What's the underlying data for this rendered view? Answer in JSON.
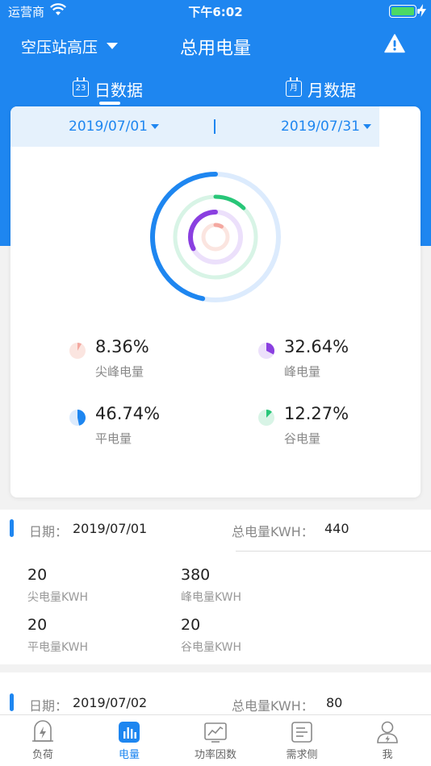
{
  "status_bar": {
    "carrier": "运营商",
    "time": "下午6:02"
  },
  "header": {
    "station": "空压站高压",
    "title": "总用电量"
  },
  "tabs": [
    {
      "label": "日数据",
      "icon_text": "23"
    },
    {
      "label": "月数据",
      "icon_text": "月"
    }
  ],
  "date_range": {
    "start": "2019/07/01",
    "end": "2019/07/31"
  },
  "chart_data": {
    "type": "pie",
    "categories": [
      "尖峰电量",
      "峰电量",
      "平电量",
      "谷电量"
    ],
    "values": [
      8.36,
      32.64,
      46.74,
      12.27
    ],
    "colors": [
      "#f4a8a0",
      "#8a3fe0",
      "#1e86f0",
      "#28c678"
    ],
    "track_colors": [
      "#fbe5e0",
      "#ece0fb",
      "#dcebfd",
      "#d8f4e6"
    ]
  },
  "stats": [
    {
      "pct": "8.36%",
      "label": "尖峰电量"
    },
    {
      "pct": "32.64%",
      "label": "峰电量"
    },
    {
      "pct": "46.74%",
      "label": "平电量"
    },
    {
      "pct": "12.27%",
      "label": "谷电量"
    }
  ],
  "records": [
    {
      "date_label": "日期：",
      "date": "2019/07/01",
      "total_label": "总电量KWH：",
      "total": "440",
      "items": [
        {
          "value": "20",
          "unit": "尖电量KWH"
        },
        {
          "value": "380",
          "unit": "峰电量KWH"
        },
        {
          "value": "20",
          "unit": "平电量KWH"
        },
        {
          "value": "20",
          "unit": "谷电量KWH"
        }
      ]
    },
    {
      "date_label": "日期：",
      "date": "2019/07/02",
      "total_label": "总电量KWH：",
      "total": "80"
    }
  ],
  "bottom_nav": [
    {
      "label": "负荷",
      "icon": "load-icon"
    },
    {
      "label": "电量",
      "icon": "power-chart-icon",
      "active": true
    },
    {
      "label": "功率因数",
      "icon": "power-factor-icon"
    },
    {
      "label": "需求侧",
      "icon": "demand-icon"
    },
    {
      "label": "我",
      "icon": "profile-icon"
    }
  ]
}
